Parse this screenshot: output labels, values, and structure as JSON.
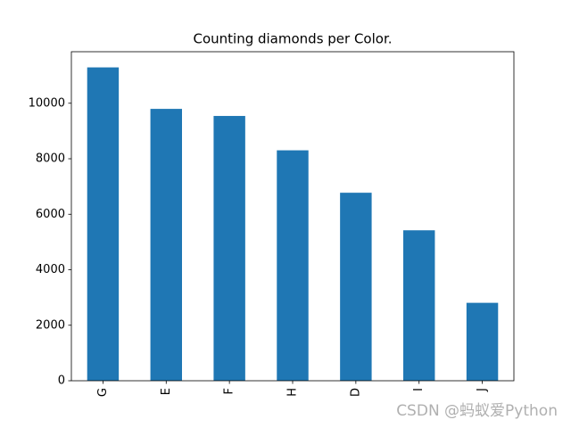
{
  "chart_data": {
    "type": "bar",
    "title": "Counting diamonds per Color.",
    "categories": [
      "G",
      "E",
      "F",
      "H",
      "D",
      "I",
      "J"
    ],
    "values": [
      11292,
      9797,
      9542,
      8304,
      6775,
      5422,
      2808
    ],
    "color": "#1f77b4",
    "ylim": [
      0,
      11856.6
    ],
    "yticks": [
      0,
      2000,
      4000,
      6000,
      8000,
      10000
    ],
    "grid": false
  },
  "watermark": "CSDN @蚂蚁爱Python"
}
